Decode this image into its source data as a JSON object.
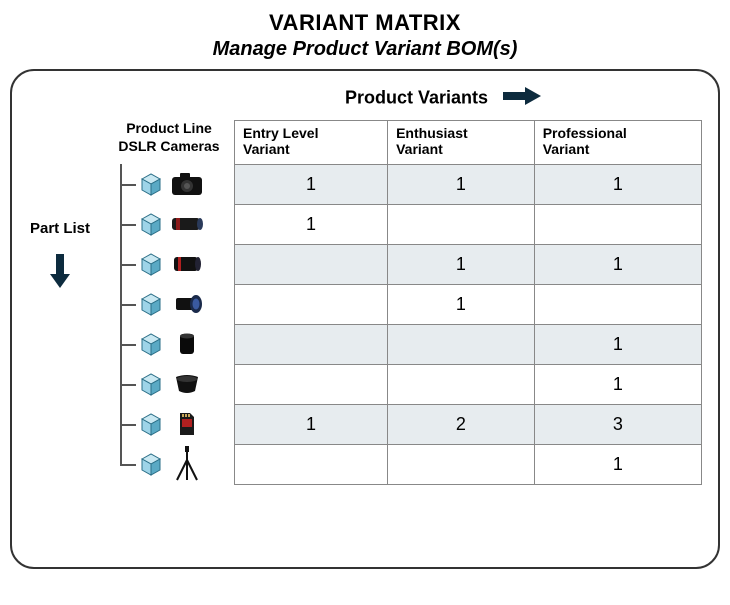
{
  "title": "VARIANT MATRIX",
  "subtitle": "Manage Product Variant BOM(s)",
  "variants_header": "Product Variants",
  "product_line": {
    "line1": "Product Line",
    "line2": "DSLR Cameras"
  },
  "part_list_label": "Part List",
  "columns": [
    {
      "l1": "Entry Level",
      "l2": "Variant"
    },
    {
      "l1": "Enthusiast",
      "l2": "Variant"
    },
    {
      "l1": "Professional",
      "l2": "Variant"
    }
  ],
  "parts": [
    {
      "icon": "camera",
      "cells": [
        "1",
        "1",
        "1"
      ],
      "shaded": true
    },
    {
      "icon": "lens-long",
      "cells": [
        "1",
        "",
        ""
      ],
      "shaded": false
    },
    {
      "icon": "lens-red",
      "cells": [
        "",
        "1",
        "1"
      ],
      "shaded": true
    },
    {
      "icon": "lens-wide",
      "cells": [
        "",
        "1",
        ""
      ],
      "shaded": false
    },
    {
      "icon": "lens-small",
      "cells": [
        "",
        "",
        "1"
      ],
      "shaded": true
    },
    {
      "icon": "hood",
      "cells": [
        "",
        "",
        "1"
      ],
      "shaded": false
    },
    {
      "icon": "sdcard",
      "cells": [
        "1",
        "2",
        "3"
      ],
      "shaded": true
    },
    {
      "icon": "tripod",
      "cells": [
        "",
        "",
        "1"
      ],
      "shaded": false
    }
  ],
  "colors": {
    "arrow": "#0d2b3e",
    "cube_front": "#9ed4e8",
    "cube_top": "#c9e8f2",
    "cube_side": "#5aa9c4",
    "cube_edge": "#2a6e87",
    "shade_row": "#e7ecef"
  }
}
